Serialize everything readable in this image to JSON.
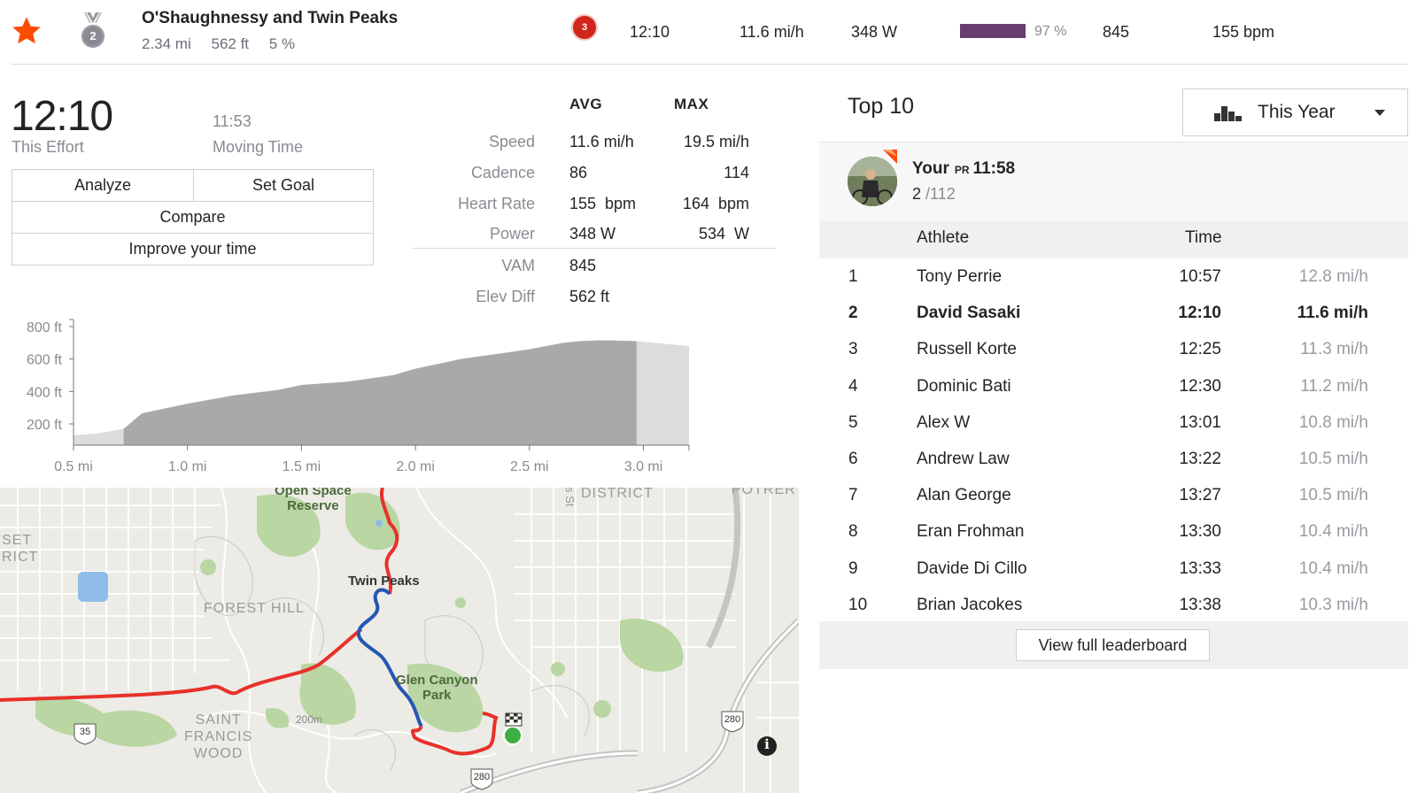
{
  "segment": {
    "name": "O'Shaughnessy and Twin Peaks",
    "distance": "2.34 mi",
    "elevation": "562 ft",
    "grade": "5 %",
    "medal_rank": "2"
  },
  "summary_row": {
    "rank_badge": "3",
    "time": "12:10",
    "speed": "11.6 mi/h",
    "power": "348 W",
    "power_fraction": 0.97,
    "power_pct": "97 %",
    "vam": "845",
    "heart_rate": "155 bpm"
  },
  "effort": {
    "time": "12:10",
    "time_label": "This Effort",
    "moving_time": "11:53",
    "moving_label": "Moving Time",
    "buttons": {
      "analyze": "Analyze",
      "set_goal": "Set Goal",
      "compare": "Compare",
      "improve": "Improve your time"
    }
  },
  "stats": {
    "avg_header": "AVG",
    "max_header": "MAX",
    "rows": [
      {
        "label": "Speed",
        "avg": "11.6 mi/h",
        "max": "19.5 mi/h"
      },
      {
        "label": "Cadence",
        "avg": "86",
        "max": "114"
      },
      {
        "label": "Heart Rate",
        "avg": "155  bpm",
        "max": "164  bpm"
      },
      {
        "label": "Power",
        "avg": "348 W",
        "max": "534  W"
      },
      {
        "label": "VAM",
        "avg": "845",
        "max": ""
      },
      {
        "label": "Elev Diff",
        "avg": "562 ft",
        "max": ""
      }
    ]
  },
  "chart_data": {
    "type": "area",
    "title": "",
    "xlabel": "",
    "ylabel": "",
    "x_ticks": [
      "0.5 mi",
      "1.0 mi",
      "1.5 mi",
      "2.0 mi",
      "2.5 mi",
      "3.0 mi"
    ],
    "y_ticks": [
      "800 ft",
      "600 ft",
      "400 ft",
      "200 ft"
    ],
    "xlim": [
      0.5,
      3.2
    ],
    "ylim": [
      100,
      850
    ],
    "series": [
      {
        "name": "elevation",
        "x": [
          0.5,
          0.6,
          0.72,
          0.8,
          1.0,
          1.2,
          1.4,
          1.5,
          1.7,
          1.9,
          2.0,
          2.2,
          2.4,
          2.5,
          2.65,
          2.72,
          2.8,
          2.85,
          2.97,
          3.05,
          3.2
        ],
        "y": [
          130,
          140,
          170,
          265,
          325,
          375,
          410,
          440,
          460,
          500,
          540,
          600,
          640,
          660,
          700,
          710,
          715,
          715,
          710,
          700,
          680
        ]
      }
    ],
    "segment_range": [
      0.72,
      2.97
    ]
  },
  "map": {
    "labels": {
      "open_space": "Open Space",
      "reserve": "Reserve",
      "twin_peaks": "Twin Peaks",
      "forest_hill": "FOREST HILL",
      "glen_canyon": "Glen Canyon",
      "park": "Park",
      "saint": "SAINT",
      "francis": "FRANCIS",
      "wood": "WOOD",
      "district": "DISTRICT",
      "st": "s St",
      "potrero": "POTRER",
      "set": "SET",
      "rict": "RICT",
      "contour": "200m",
      "hwy35": "35",
      "hwy280a": "280",
      "hwy280b": "280"
    }
  },
  "leaderboard": {
    "title": "Top 10",
    "filter": "This Year",
    "your": {
      "label": "Your",
      "pr": "PR",
      "time": "11:58",
      "rank": "2",
      "of": "/112"
    },
    "columns": {
      "athlete": "Athlete",
      "time": "Time"
    },
    "rows": [
      {
        "rank": "1",
        "name": "Tony Perrie",
        "time": "10:57",
        "speed": "12.8 mi/h"
      },
      {
        "rank": "2",
        "name": "David Sasaki",
        "time": "12:10",
        "speed": "11.6 mi/h"
      },
      {
        "rank": "3",
        "name": "Russell Korte",
        "time": "12:25",
        "speed": "11.3 mi/h"
      },
      {
        "rank": "4",
        "name": "Dominic Bati",
        "time": "12:30",
        "speed": "11.2 mi/h"
      },
      {
        "rank": "5",
        "name": "Alex W",
        "time": "13:01",
        "speed": "10.8 mi/h"
      },
      {
        "rank": "6",
        "name": "Andrew Law",
        "time": "13:22",
        "speed": "10.5 mi/h"
      },
      {
        "rank": "7",
        "name": "Alan George",
        "time": "13:27",
        "speed": "10.5 mi/h"
      },
      {
        "rank": "8",
        "name": "Eran Frohman",
        "time": "13:30",
        "speed": "10.4 mi/h"
      },
      {
        "rank": "9",
        "name": "Davide Di Cillo",
        "time": "13:33",
        "speed": "10.4 mi/h"
      },
      {
        "rank": "10",
        "name": "Brian Jacokes",
        "time": "13:38",
        "speed": "10.3 mi/h"
      }
    ],
    "highlight_rank": "2",
    "view_full": "View full leaderboard"
  },
  "colors": {
    "strava_orange": "#fc4c02",
    "route_red": "#e8312a",
    "route_blue": "#2456b3",
    "power_bar": "#6a3e6e",
    "badge_red": "#d0261d"
  }
}
